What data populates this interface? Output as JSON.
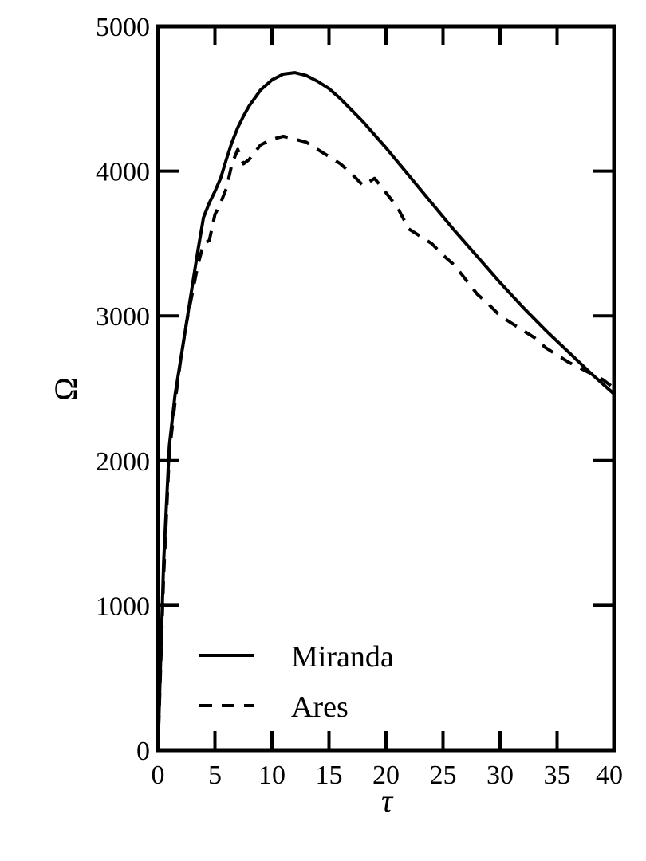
{
  "chart_data": {
    "type": "line",
    "title": "",
    "xlabel": "τ",
    "ylabel": "Ω",
    "xlim": [
      0,
      40
    ],
    "ylim": [
      0,
      5000
    ],
    "x_ticks": [
      0,
      5,
      10,
      15,
      20,
      25,
      30,
      35,
      40
    ],
    "y_ticks": [
      0,
      1000,
      2000,
      3000,
      4000,
      5000
    ],
    "grid": false,
    "legend_position": "bottom-left",
    "series": [
      {
        "name": "Miranda",
        "style": "solid",
        "color": "#000000",
        "x": [
          0,
          0.5,
          1,
          1.5,
          2,
          2.5,
          3,
          3.5,
          4,
          4.5,
          5,
          5.5,
          6,
          6.5,
          7,
          7.5,
          8,
          9,
          10,
          11,
          12,
          13,
          14,
          15,
          16,
          17,
          18,
          20,
          22,
          24,
          26,
          28,
          30,
          32,
          34,
          36,
          38,
          40
        ],
        "y": [
          0,
          1300,
          2100,
          2450,
          2700,
          2950,
          3200,
          3450,
          3680,
          3780,
          3860,
          3950,
          4080,
          4200,
          4300,
          4380,
          4450,
          4560,
          4630,
          4670,
          4680,
          4660,
          4620,
          4570,
          4500,
          4420,
          4340,
          4160,
          3970,
          3780,
          3590,
          3410,
          3230,
          3060,
          2900,
          2750,
          2600,
          2460
        ]
      },
      {
        "name": "Ares",
        "style": "dashed",
        "color": "#000000",
        "x": [
          0,
          0.5,
          1,
          1.5,
          2,
          2.5,
          3,
          3.5,
          4,
          4.5,
          5,
          5.5,
          6,
          6.5,
          7,
          7.5,
          8,
          9,
          10,
          11,
          12,
          13,
          14,
          15,
          16,
          17,
          18,
          19,
          20,
          21,
          22,
          23,
          24,
          25,
          26,
          27,
          28,
          29,
          30,
          31,
          32,
          33,
          34,
          35,
          36,
          37,
          38,
          39,
          40
        ],
        "y": [
          0,
          1200,
          2050,
          2400,
          2700,
          2950,
          3150,
          3350,
          3500,
          3520,
          3700,
          3780,
          3880,
          4050,
          4150,
          4050,
          4080,
          4180,
          4220,
          4240,
          4220,
          4200,
          4150,
          4100,
          4050,
          3980,
          3900,
          3950,
          3850,
          3750,
          3600,
          3550,
          3500,
          3420,
          3350,
          3250,
          3150,
          3080,
          3000,
          2950,
          2900,
          2850,
          2780,
          2730,
          2680,
          2640,
          2600,
          2560,
          2500
        ]
      }
    ]
  }
}
